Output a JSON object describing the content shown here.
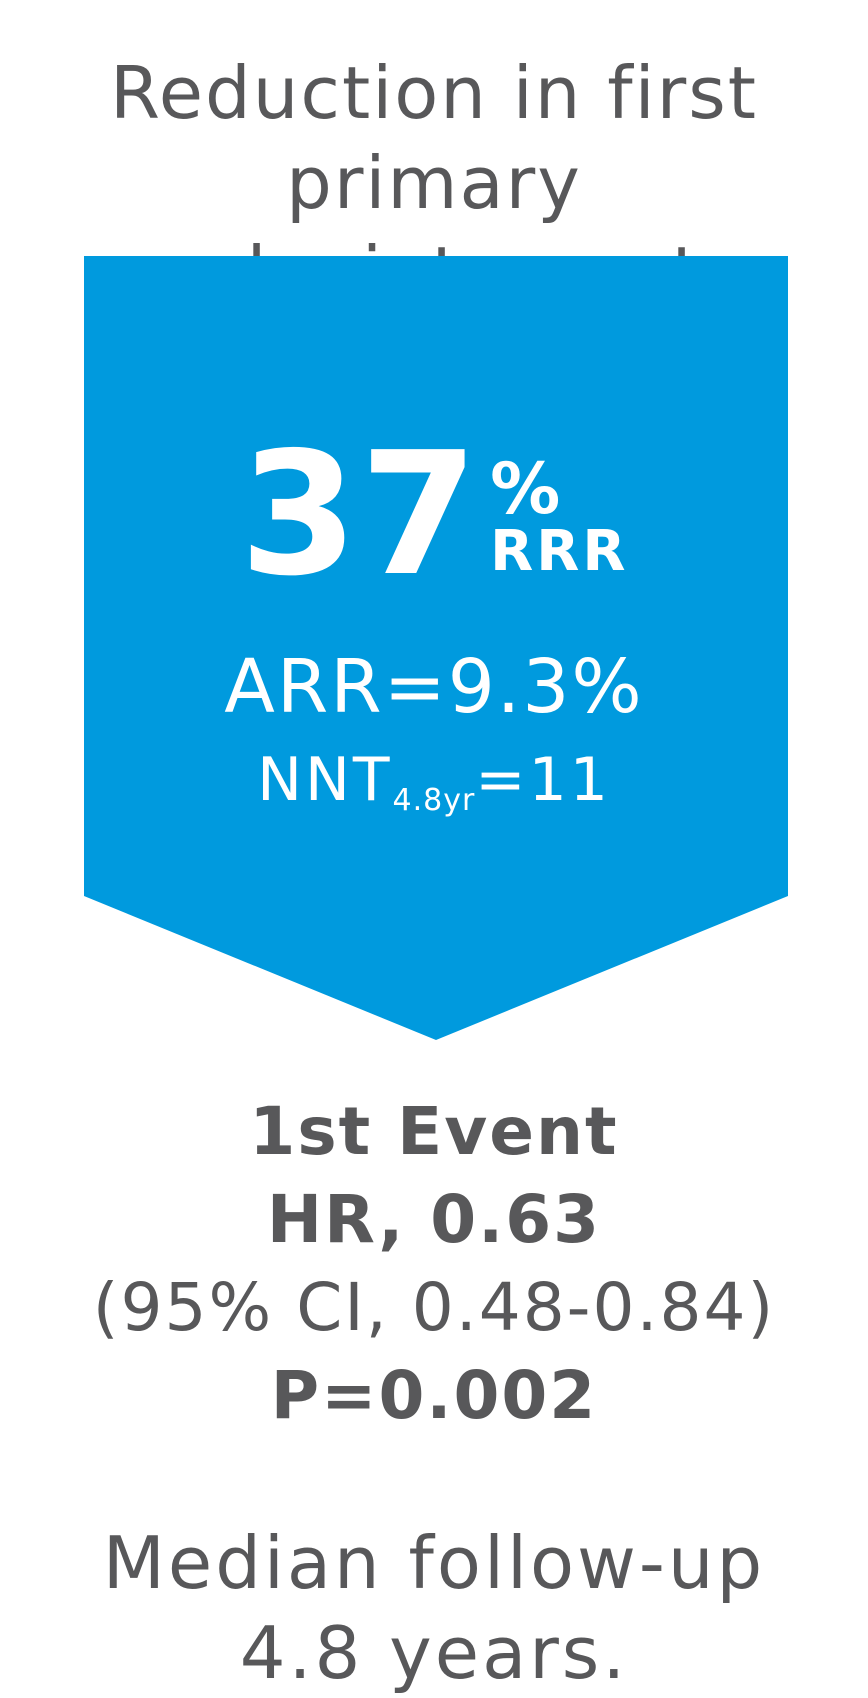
{
  "title": {
    "line1": "Reduction in first primary",
    "line2": "endpoint events"
  },
  "colors": {
    "arrow_fill": "#009ade",
    "text_gray": "#58585a",
    "text_on_arrow": "#ffffff"
  },
  "headline": {
    "number": "37",
    "percent": "%",
    "unit": "RRR"
  },
  "arr": "ARR=9.3%",
  "nnt": {
    "prefix": "NNT",
    "subscript": "4.8yr",
    "suffix": "=11"
  },
  "results": {
    "event": "1st Event",
    "hr": "HR, 0.63",
    "ci": "(95% CI, 0.48-0.84)",
    "p": "P=0.002"
  },
  "followup": {
    "line1": "Median follow-up",
    "line2": "4.8 years."
  }
}
